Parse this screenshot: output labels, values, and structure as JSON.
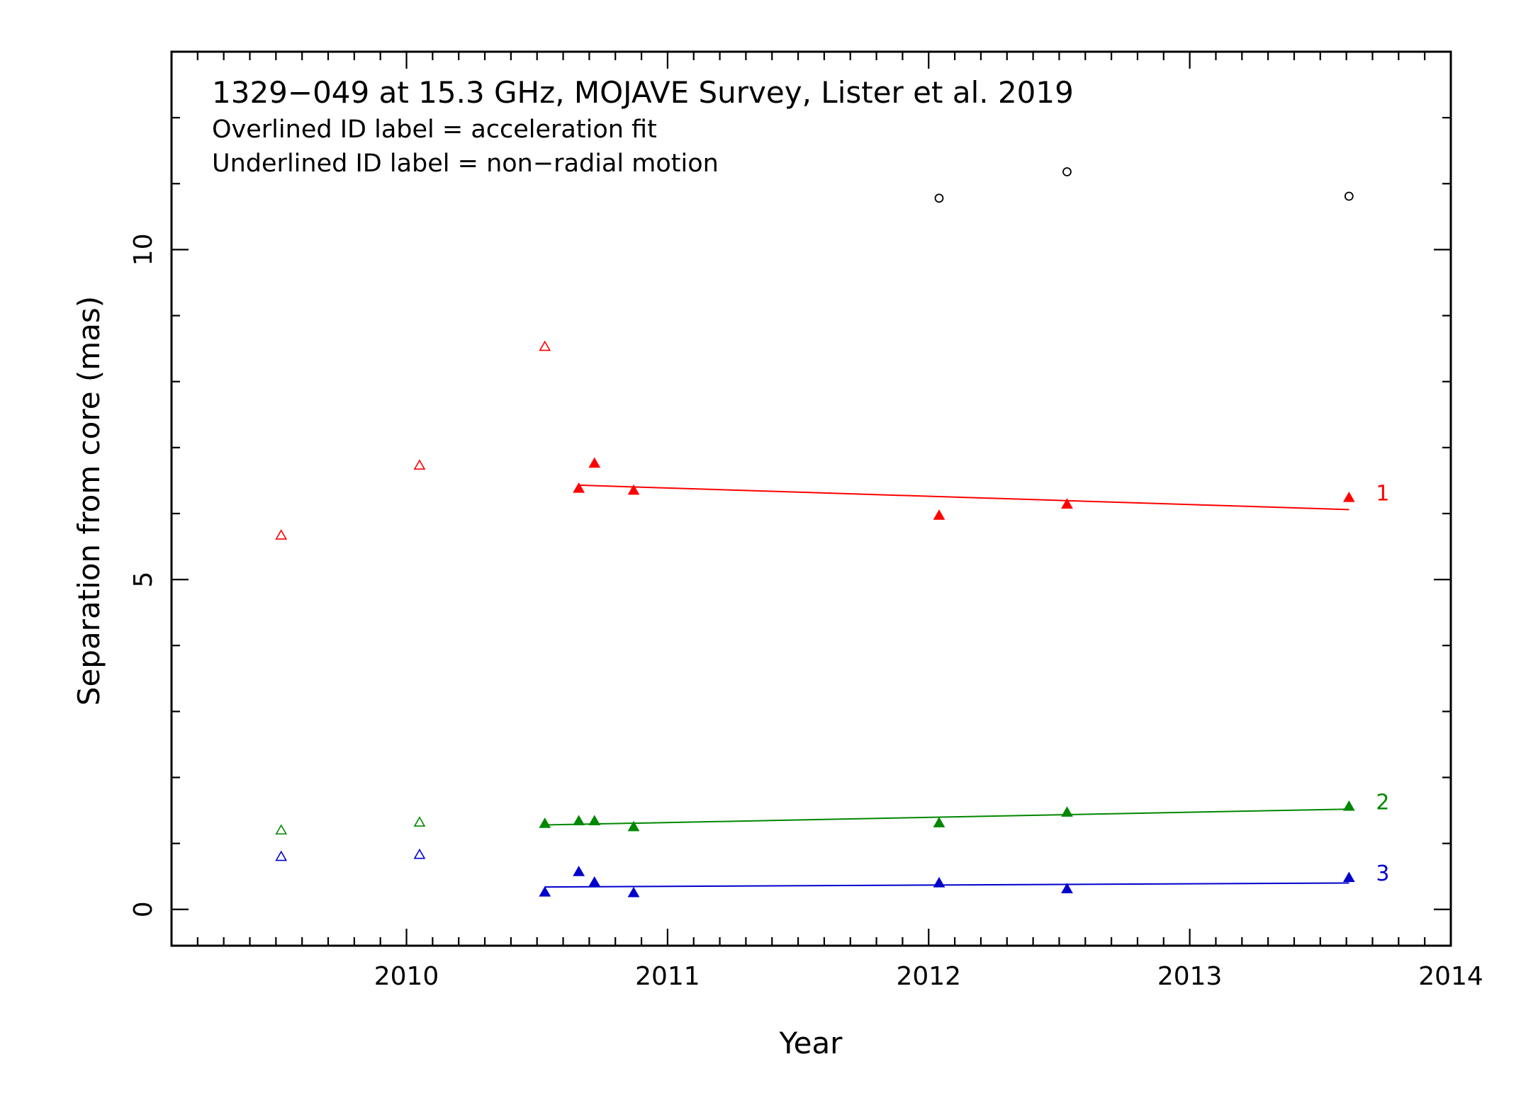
{
  "chart_data": {
    "type": "scatter",
    "title": "1329−049 at 15.3 GHz, MOJAVE Survey, Lister et al. 2019",
    "subtitle_lines": [
      "Overlined ID label = acceleration fit",
      "Underlined ID label = non−radial motion"
    ],
    "xlabel": "Year",
    "ylabel": "Separation from core (mas)",
    "xlim": [
      2009.1,
      2014.0
    ],
    "ylim": [
      -0.55,
      13.0
    ],
    "x_ticks": [
      2010,
      2011,
      2012,
      2013,
      2014
    ],
    "x_tick_labels": [
      "2010",
      "2011",
      "2012",
      "2013",
      "2014"
    ],
    "x_minor_step": 0.1,
    "y_ticks": [
      0,
      5,
      10
    ],
    "y_tick_labels": [
      "0",
      "5",
      "10"
    ],
    "y_minor_step": 1,
    "grid": false,
    "legend": "none",
    "series": [
      {
        "color": "#000000",
        "marker": "circle-open",
        "x": [
          2012.04,
          2012.53,
          2013.61
        ],
        "y": [
          10.78,
          11.18,
          10.81
        ]
      },
      {
        "color": "#ff0000",
        "marker": "triangle-open",
        "x": [
          2009.52,
          2010.05,
          2010.53
        ],
        "y": [
          5.67,
          6.73,
          8.53
        ]
      },
      {
        "color": "#ff0000",
        "marker": "triangle-filled",
        "id_label": "1",
        "x": [
          2010.66,
          2010.72,
          2010.87,
          2012.04,
          2012.53,
          2013.61
        ],
        "y": [
          6.38,
          6.76,
          6.35,
          5.97,
          6.14,
          6.24
        ],
        "fit": {
          "x": [
            2010.66,
            2013.61
          ],
          "y": [
            6.43,
            6.06
          ]
        }
      },
      {
        "color": "#008800",
        "marker": "triangle-open",
        "x": [
          2009.52,
          2010.05
        ],
        "y": [
          1.2,
          1.32
        ]
      },
      {
        "color": "#008800",
        "marker": "triangle-filled",
        "id_label": "2",
        "x": [
          2010.53,
          2010.66,
          2010.72,
          2010.87,
          2012.04,
          2012.53,
          2013.61
        ],
        "y": [
          1.3,
          1.34,
          1.34,
          1.25,
          1.31,
          1.47,
          1.56
        ],
        "fit": {
          "x": [
            2010.53,
            2013.61
          ],
          "y": [
            1.28,
            1.52
          ]
        }
      },
      {
        "color": "#0000cc",
        "marker": "triangle-open",
        "x": [
          2009.52,
          2010.05
        ],
        "y": [
          0.8,
          0.83
        ]
      },
      {
        "color": "#0000cc",
        "marker": "triangle-filled",
        "id_label": "3",
        "x": [
          2010.53,
          2010.66,
          2010.72,
          2010.87,
          2012.04,
          2012.53,
          2013.61
        ],
        "y": [
          0.26,
          0.57,
          0.41,
          0.25,
          0.4,
          0.31,
          0.48
        ],
        "fit": {
          "x": [
            2010.53,
            2013.61
          ],
          "y": [
            0.34,
            0.4
          ]
        }
      }
    ]
  }
}
